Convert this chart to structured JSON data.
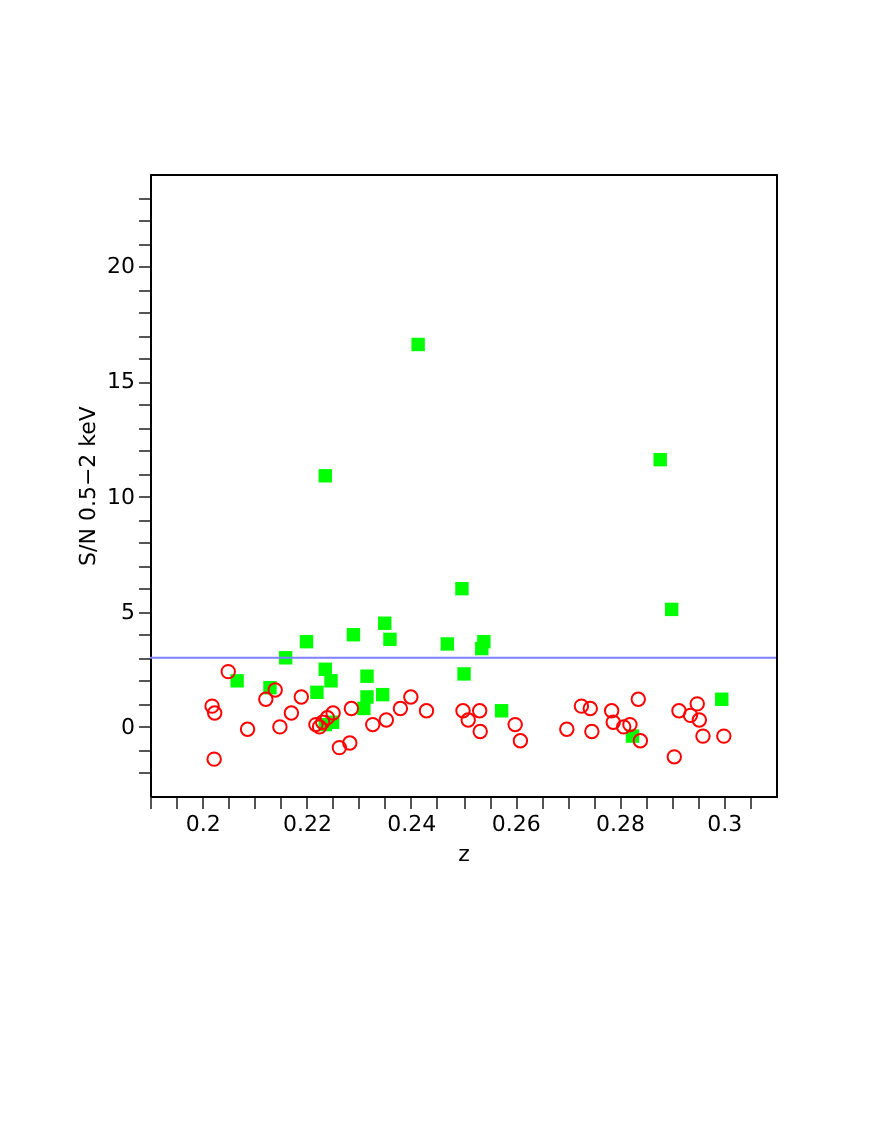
{
  "chart_data": {
    "type": "scatter",
    "xlabel": "z",
    "ylabel": "S/N 0.5−2 keV",
    "xlim": [
      0.19,
      0.31
    ],
    "ylim": [
      -3,
      24
    ],
    "xticks": [
      {
        "value": 0.19,
        "label": null
      },
      {
        "value": 0.195,
        "label": null
      },
      0.2,
      {
        "value": 0.205,
        "label": null
      },
      {
        "value": 0.21,
        "label": null
      },
      {
        "value": 0.215,
        "label": null
      },
      0.22,
      {
        "value": 0.225,
        "label": null
      },
      {
        "value": 0.23,
        "label": null
      },
      {
        "value": 0.235,
        "label": null
      },
      0.24,
      {
        "value": 0.245,
        "label": null
      },
      {
        "value": 0.25,
        "label": null
      },
      {
        "value": 0.255,
        "label": null
      },
      0.26,
      {
        "value": 0.265,
        "label": null
      },
      {
        "value": 0.27,
        "label": null
      },
      {
        "value": 0.275,
        "label": null
      },
      0.28,
      {
        "value": 0.285,
        "label": null
      },
      {
        "value": 0.29,
        "label": null
      },
      {
        "value": 0.295,
        "label": null
      },
      0.3,
      {
        "value": 0.305,
        "label": null
      }
    ],
    "yticks": [
      {
        "value": -2,
        "label": null
      },
      {
        "value": -1,
        "label": null
      },
      0,
      {
        "value": 1,
        "label": null
      },
      {
        "value": 2,
        "label": null
      },
      {
        "value": 3,
        "label": null
      },
      {
        "value": 4,
        "label": null
      },
      5,
      {
        "value": 6,
        "label": null
      },
      {
        "value": 7,
        "label": null
      },
      {
        "value": 8,
        "label": null
      },
      {
        "value": 9,
        "label": null
      },
      10,
      {
        "value": 11,
        "label": null
      },
      {
        "value": 12,
        "label": null
      },
      {
        "value": 13,
        "label": null
      },
      {
        "value": 14,
        "label": null
      },
      15,
      {
        "value": 16,
        "label": null
      },
      {
        "value": 17,
        "label": null
      },
      {
        "value": 18,
        "label": null
      },
      {
        "value": 19,
        "label": null
      },
      20,
      {
        "value": 21,
        "label": null
      },
      {
        "value": 22,
        "label": null
      },
      {
        "value": 23,
        "label": null
      }
    ],
    "ref_lines": [
      {
        "axis": "y",
        "value": 3,
        "color": "#7f7fff"
      }
    ],
    "series": [
      {
        "color": "#ff0000",
        "marker": "circle",
        "x": [
          0.2019,
          0.2024,
          0.2023,
          0.205,
          0.2087,
          0.2122,
          0.214,
          0.2149,
          0.2171,
          0.219,
          0.2218,
          0.2225,
          0.2231,
          0.224,
          0.2251,
          0.2263,
          0.2283,
          0.2286,
          0.2327,
          0.2353,
          0.238,
          0.24,
          0.243,
          0.25,
          0.251,
          0.2532,
          0.2533,
          0.26,
          0.261,
          0.2699,
          0.2727,
          0.2744,
          0.2747,
          0.2785,
          0.2788,
          0.2808,
          0.282,
          0.2836,
          0.284,
          0.2905,
          0.2914,
          0.2936,
          0.2949,
          0.2953,
          0.296,
          0.3
        ],
        "values": [
          0.9,
          0.6,
          -1.4,
          2.4,
          -0.1,
          1.2,
          1.6,
          0.0,
          0.6,
          1.3,
          0.1,
          0.0,
          0.2,
          0.4,
          0.6,
          -0.9,
          -0.7,
          0.8,
          0.1,
          0.3,
          0.8,
          1.3,
          0.7,
          0.7,
          0.3,
          0.7,
          -0.2,
          0.1,
          -0.6,
          -0.1,
          0.9,
          0.8,
          -0.2,
          0.7,
          0.2,
          0.0,
          0.1,
          1.2,
          -0.6,
          -1.3,
          0.7,
          0.5,
          1.0,
          0.3,
          -0.4,
          -0.4
        ]
      },
      {
        "color": "#00ff00",
        "marker": "square",
        "x": [
          0.2067,
          0.213,
          0.216,
          0.22,
          0.222,
          0.2236,
          0.2247,
          0.2236,
          0.225,
          0.2236,
          0.229,
          0.2316,
          0.2316,
          0.2346,
          0.235,
          0.236,
          0.231,
          0.2414,
          0.247,
          0.2498,
          0.2502,
          0.2536,
          0.254,
          0.2574,
          0.2878,
          0.29,
          0.2825,
          0.2996
        ],
        "values": [
          2.0,
          1.7,
          3.0,
          3.7,
          1.5,
          2.5,
          2.0,
          0.1,
          0.2,
          10.9,
          4.0,
          2.2,
          1.3,
          1.4,
          4.5,
          3.8,
          0.8,
          16.6,
          3.6,
          6.0,
          2.3,
          3.4,
          3.7,
          0.7,
          11.6,
          5.1,
          -0.4,
          1.2
        ]
      }
    ]
  }
}
